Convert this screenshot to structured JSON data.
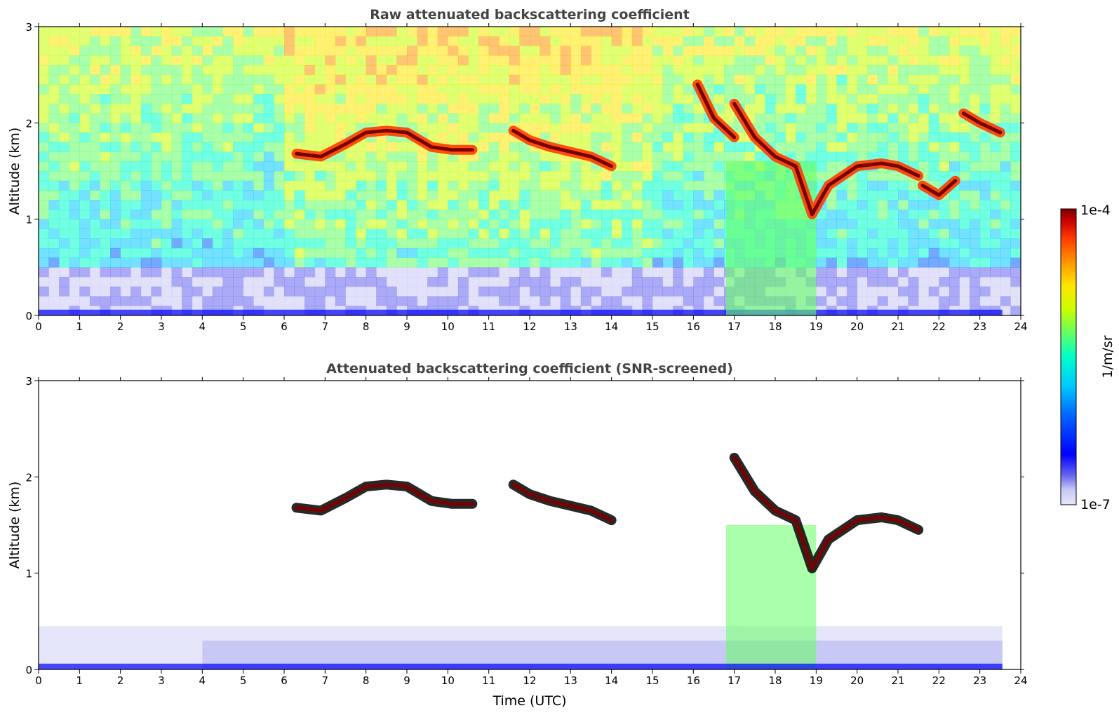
{
  "chart_data": [
    {
      "type": "heatmap",
      "title": "Raw attenuated backscattering coefficient",
      "xlabel": "",
      "ylabel": "Altitude (km)",
      "xlim": [
        0,
        24
      ],
      "ylim": [
        0,
        3
      ],
      "xticks": [
        "0",
        "1",
        "2",
        "3",
        "4",
        "5",
        "6",
        "7",
        "8",
        "9",
        "10",
        "11",
        "12",
        "13",
        "14",
        "15",
        "16",
        "17",
        "18",
        "19",
        "20",
        "21",
        "22",
        "23",
        "24"
      ],
      "yticks": [
        "0",
        "1",
        "2",
        "3"
      ],
      "layers": [
        {
          "name": "cloud layer",
          "time_utc": [
            6.3,
            6.9,
            7.5,
            8.0,
            8.5,
            9.0,
            9.6,
            10.1,
            10.6
          ],
          "altitude_km": [
            1.68,
            1.65,
            1.78,
            1.9,
            1.92,
            1.9,
            1.75,
            1.72,
            1.72
          ]
        },
        {
          "name": "cloud layer",
          "time_utc": [
            11.6,
            12.0,
            12.5,
            13.0,
            13.5,
            14.0
          ],
          "altitude_km": [
            1.92,
            1.82,
            1.75,
            1.7,
            1.65,
            1.55
          ]
        },
        {
          "name": "cloud layer",
          "time_utc": [
            17.0,
            17.5,
            18.0,
            18.5,
            18.9,
            19.3,
            20.0,
            20.6,
            21.0,
            21.5
          ],
          "altitude_km": [
            2.2,
            1.85,
            1.65,
            1.55,
            1.05,
            1.35,
            1.55,
            1.58,
            1.55,
            1.45
          ]
        },
        {
          "name": "cloud layer",
          "time_utc": [
            16.1,
            16.5,
            17.0
          ],
          "altitude_km": [
            2.4,
            2.05,
            1.85
          ]
        },
        {
          "name": "cloud fragment",
          "time_utc": [
            21.6,
            22.0,
            22.4
          ],
          "altitude_km": [
            1.35,
            1.25,
            1.4
          ]
        },
        {
          "name": "cloud fragment",
          "time_utc": [
            22.6,
            23.0,
            23.5
          ],
          "altitude_km": [
            2.1,
            2.0,
            1.9
          ]
        }
      ],
      "colorbar": {
        "label": "1/m/sr",
        "min_label": "1e-7",
        "max_label": "1e-4",
        "scale": "log",
        "range": [
          1e-07,
          0.0001
        ]
      }
    },
    {
      "type": "heatmap",
      "title": "Attenuated backscattering coefficient (SNR-screened)",
      "xlabel": "Time (UTC)",
      "ylabel": "Altitude (km)",
      "xlim": [
        0,
        24
      ],
      "ylim": [
        0,
        3
      ],
      "xticks": [
        "0",
        "1",
        "2",
        "3",
        "4",
        "5",
        "6",
        "7",
        "8",
        "9",
        "10",
        "11",
        "12",
        "13",
        "14",
        "15",
        "16",
        "17",
        "18",
        "19",
        "20",
        "21",
        "22",
        "23",
        "24"
      ],
      "yticks": [
        "0",
        "1",
        "2",
        "3"
      ],
      "layers": [
        {
          "name": "cloud layer",
          "time_utc": [
            6.3,
            6.9,
            7.5,
            8.0,
            8.5,
            9.0,
            9.6,
            10.1,
            10.6
          ],
          "altitude_km": [
            1.68,
            1.65,
            1.78,
            1.9,
            1.92,
            1.9,
            1.75,
            1.72,
            1.72
          ]
        },
        {
          "name": "cloud layer",
          "time_utc": [
            11.6,
            12.0,
            12.5,
            13.0,
            13.5,
            14.0
          ],
          "altitude_km": [
            1.92,
            1.82,
            1.75,
            1.7,
            1.65,
            1.55
          ]
        },
        {
          "name": "cloud layer",
          "time_utc": [
            17.0,
            17.5,
            18.0,
            18.5,
            18.9,
            19.3,
            20.0,
            20.6,
            21.0,
            21.5
          ],
          "altitude_km": [
            2.2,
            1.85,
            1.65,
            1.55,
            1.05,
            1.35,
            1.55,
            1.58,
            1.55,
            1.45
          ]
        }
      ]
    }
  ],
  "colors": {
    "colormap": [
      "#e6e6fa",
      "#c8c8f5",
      "#6464f0",
      "#0000ff",
      "#0064ff",
      "#00c8ff",
      "#00ffc8",
      "#64ff64",
      "#c8ff00",
      "#ffe600",
      "#ff9600",
      "#ff3c00",
      "#c80000",
      "#780000"
    ],
    "title_text": "#444444"
  }
}
